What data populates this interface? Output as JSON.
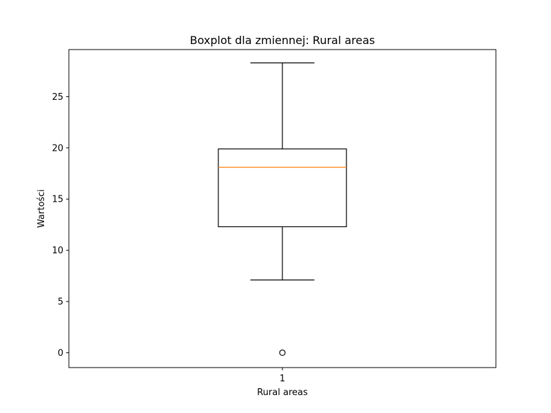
{
  "chart_data": {
    "type": "boxplot",
    "title": "Boxplot dla zmiennej: Rural areas",
    "xlabel": "Rural areas",
    "ylabel": "Wartości",
    "categories": [
      "1"
    ],
    "ylim": [
      -1.45,
      29.6
    ],
    "yticks": [
      0,
      5,
      10,
      15,
      20,
      25
    ],
    "ytick_labels": [
      "0",
      "5",
      "10",
      "15",
      "20",
      "25"
    ],
    "grid": false,
    "boxes": [
      {
        "category": "1",
        "whisker_low": 7.1,
        "q1": 12.3,
        "median": 18.1,
        "q3": 19.9,
        "whisker_high": 28.3,
        "outliers": [
          0.0
        ]
      }
    ],
    "colors": {
      "box": "#000000",
      "median": "#ff7f0e",
      "whisker": "#000000",
      "outlier": "#000000"
    }
  }
}
